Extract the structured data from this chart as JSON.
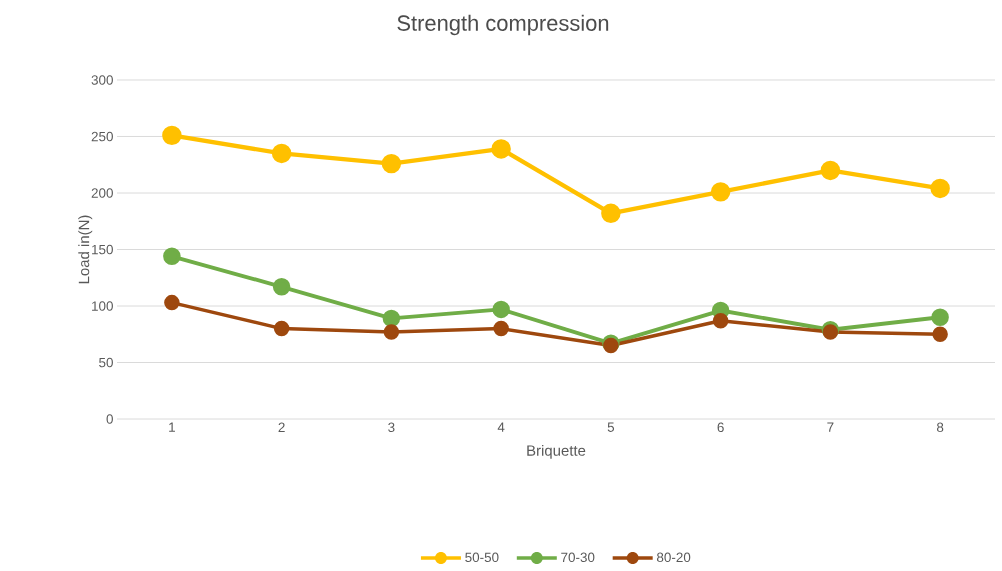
{
  "chart_data": {
    "type": "line",
    "title": "Strength compression",
    "xlabel": "Briquette",
    "ylabel": "Load in(N)",
    "categories": [
      "1",
      "2",
      "3",
      "4",
      "5",
      "6",
      "7",
      "8"
    ],
    "series": [
      {
        "name": "50-50",
        "color": "#ffc000",
        "values": [
          251,
          235,
          226,
          239,
          182,
          201,
          220,
          204
        ]
      },
      {
        "name": "70-30",
        "color": "#70ad47",
        "values": [
          144,
          117,
          89,
          97,
          67,
          96,
          79,
          90
        ]
      },
      {
        "name": "80-20",
        "color": "#9e480e",
        "values": [
          103,
          80,
          77,
          80,
          65,
          87,
          77,
          75
        ]
      }
    ],
    "ylim": [
      0,
      300
    ],
    "yticks": [
      0,
      50,
      100,
      150,
      200,
      250,
      300
    ],
    "grid": "y",
    "legend": "bottom",
    "marker": "circle",
    "line_style": "solid"
  }
}
